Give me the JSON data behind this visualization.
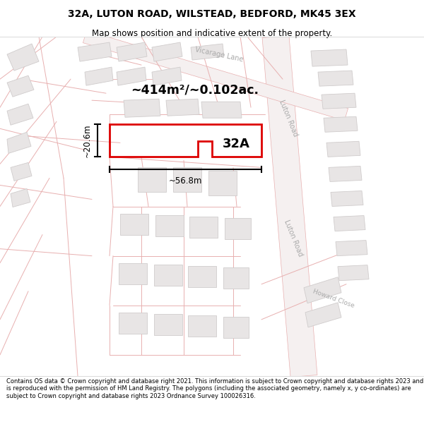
{
  "title": "32A, LUTON ROAD, WILSTEAD, BEDFORD, MK45 3EX",
  "subtitle": "Map shows position and indicative extent of the property.",
  "footer": "Contains OS data © Crown copyright and database right 2021. This information is subject to Crown copyright and database rights 2023 and is reproduced with the permission of HM Land Registry. The polygons (including the associated geometry, namely x, y co-ordinates) are subject to Crown copyright and database rights 2023 Ordnance Survey 100026316.",
  "title_bg": "#ffffff",
  "footer_bg": "#ffffff",
  "map_bg": "#f7f5f5",
  "road_line_color": "#e8b0b0",
  "road_fill_color": "#f0e8e8",
  "road_label_color": "#aaaaaa",
  "building_fill": "#e8e5e5",
  "building_outline": "#d0cccc",
  "property_label": "32A",
  "area_label": "~414m²/~0.102ac.",
  "width_label": "~56.8m",
  "height_label": "~20.6m",
  "red_color": "#dd0000",
  "road_label_1": "Vicarage Lane",
  "road_label_2": "Luton Road",
  "road_label_3": "Luton Road",
  "road_label_4": "Howard Close"
}
